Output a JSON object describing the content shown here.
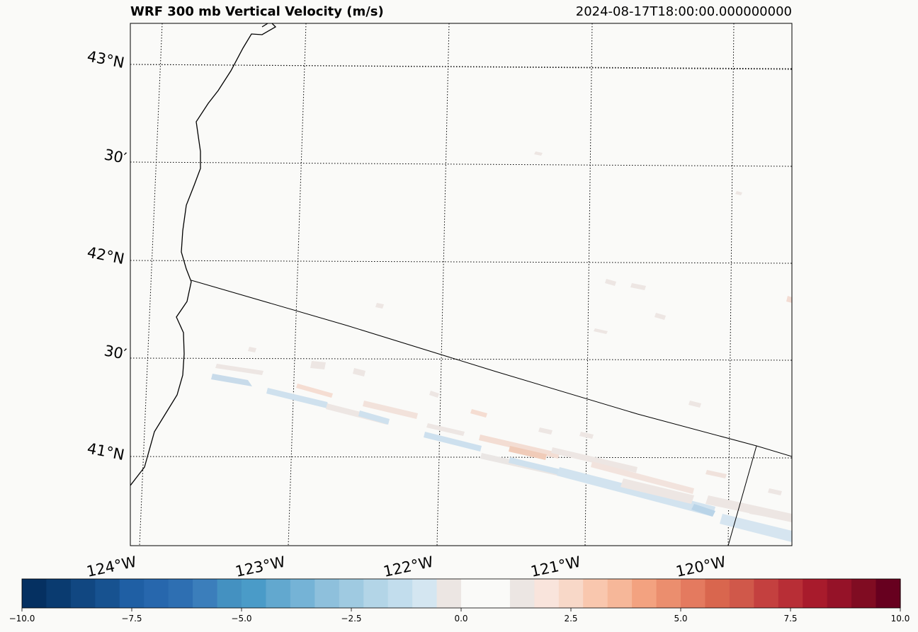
{
  "title": "WRF 300 mb Vertical Velocity (m/s)",
  "timestamp": "2024-08-17T18:00:00.000000000",
  "chart_data": {
    "type": "heatmap",
    "title": "WRF 300 mb Vertical Velocity (m/s)",
    "subtitle": "2024-08-17T18:00:00.000000000",
    "xlabel": "",
    "ylabel": "",
    "colormap": "RdBu_r",
    "grid": true,
    "latitude_labels": [
      "43°N",
      "30′",
      "42°N",
      "30′",
      "41°N"
    ],
    "longitude_labels": [
      "124°W",
      "123°W",
      "122°W",
      "121°W",
      "120°W"
    ],
    "latitudes": [
      43.0,
      42.5,
      42.0,
      41.5,
      41.0
    ],
    "longitudes": [
      -124.0,
      -123.0,
      -122.0,
      -121.0,
      -120.0
    ],
    "colorbar": {
      "vmin": -10.0,
      "vmax": 10.0,
      "ticks": [
        -10.0,
        -7.5,
        -5.0,
        -2.5,
        0.0,
        2.5,
        5.0,
        7.5,
        10.0
      ],
      "tick_labels": [
        "−10.0",
        "−7.5",
        "−5.0",
        "−2.5",
        "0.0",
        "2.5",
        "5.0",
        "7.5",
        "10.0"
      ],
      "location": "bottom"
    },
    "value_range_shown": [
      -3.0,
      2.0
    ]
  }
}
